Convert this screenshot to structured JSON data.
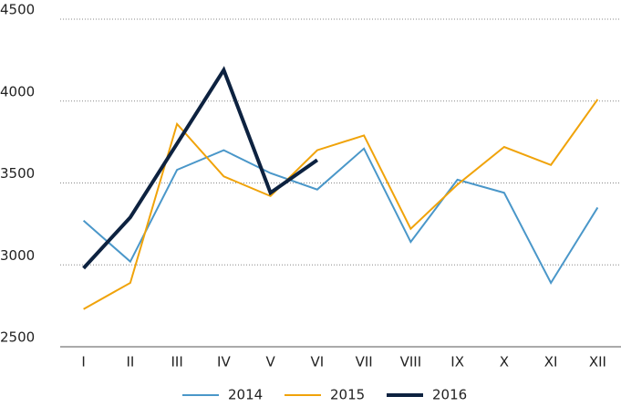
{
  "chart_data": {
    "type": "line",
    "categories": [
      "I",
      "II",
      "III",
      "IV",
      "V",
      "VI",
      "VII",
      "VIII",
      "IX",
      "X",
      "XI",
      "XII"
    ],
    "series": [
      {
        "name": "2014",
        "color": "#4a97c9",
        "width": 2,
        "values": [
          3270,
          3020,
          3580,
          3700,
          3560,
          3460,
          3710,
          3140,
          3520,
          3440,
          2890,
          3350
        ]
      },
      {
        "name": "2015",
        "color": "#f0a30a",
        "width": 2,
        "values": [
          2730,
          2890,
          3860,
          3540,
          3420,
          3700,
          3790,
          3220,
          3490,
          3720,
          3610,
          4010
        ]
      },
      {
        "name": "2016",
        "color": "#0d2240",
        "width": 4,
        "values": [
          2980,
          3290,
          3740,
          4190,
          3440,
          3640,
          null,
          null,
          null,
          null,
          null,
          null
        ]
      }
    ],
    "ylim": [
      2500,
      4500
    ],
    "yticks": [
      2500,
      3000,
      3500,
      4000,
      4500
    ],
    "grid": true,
    "legend": "bottom"
  }
}
